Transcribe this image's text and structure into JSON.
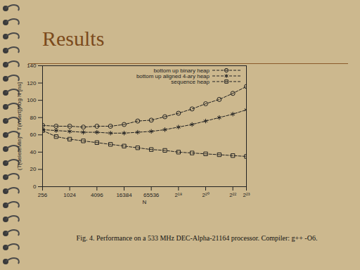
{
  "chart_data": {
    "type": "line",
    "title": "Results",
    "caption": "Fig. 4. Performance on a 533 MHz DEC-Alpha-21164 processor. Compiler: g++ -O6.",
    "xlabel": "N",
    "ylabel": "(T(deleteMin) + T(insert))/log N [ns]",
    "log": "x",
    "x": [
      256,
      512,
      1024,
      2048,
      4096,
      8192,
      16384,
      32768,
      65536,
      131072,
      262144,
      524288,
      1048576,
      2097152,
      4194304,
      8388608
    ],
    "series": [
      {
        "name": "bottom up binary heap",
        "color": "#222222",
        "marker": "circle",
        "line_style": "dashed",
        "values": [
          71,
          70,
          70,
          69,
          70,
          70,
          72,
          76,
          77,
          81,
          85,
          90,
          96,
          101,
          108,
          116
        ]
      },
      {
        "name": "bottom up aligned 4-ary heap",
        "color": "#222222",
        "marker": "asterisk",
        "line_style": "dashed",
        "values": [
          66,
          65,
          64,
          63,
          63,
          62,
          62,
          63,
          64,
          66,
          69,
          72,
          76,
          80,
          84,
          89
        ]
      },
      {
        "name": "sequence heap",
        "color": "#222222",
        "marker": "square",
        "line_style": "dashed",
        "values": [
          65,
          58,
          55,
          53,
          51,
          49,
          47,
          45,
          43,
          42,
          40,
          39,
          38,
          37,
          36,
          35
        ]
      }
    ],
    "xlim": [
      256,
      8388608
    ],
    "xticks": [
      256,
      1024,
      4096,
      16384,
      65536,
      {
        "value": 262144,
        "label": "2¹⁸"
      },
      {
        "value": 1048576,
        "label": "2²⁰"
      },
      {
        "value": 4194304,
        "label": "2²²"
      },
      {
        "value": 8388608,
        "label": "2²³"
      }
    ],
    "ylim": [
      0,
      140
    ],
    "yticks": [
      0,
      20,
      40,
      60,
      80,
      100,
      120,
      140
    ],
    "grid": false,
    "legend": "top-right"
  }
}
